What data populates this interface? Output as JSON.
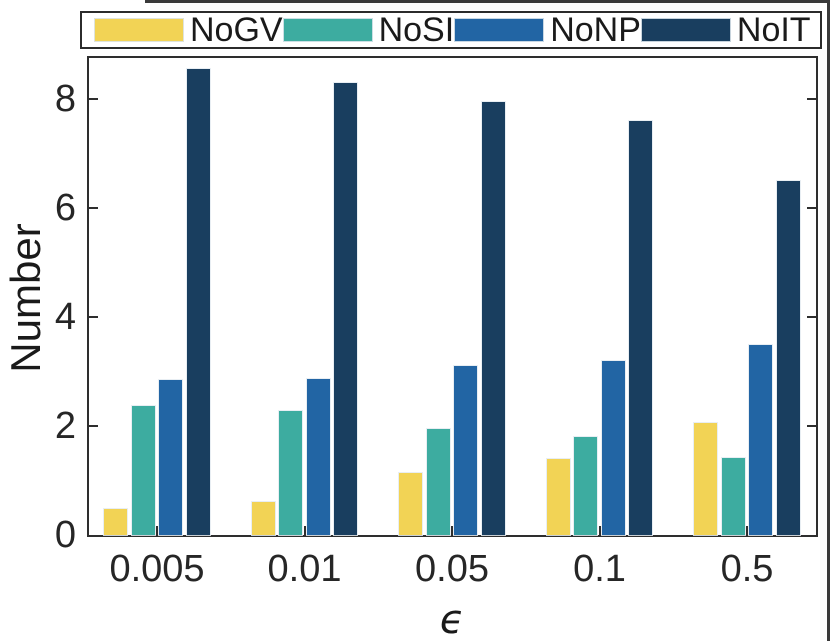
{
  "figure": {
    "background": "#ffffff",
    "frame_color": "#3a3a3a",
    "axis_color": "#2e2e2e",
    "text_color": "#262626"
  },
  "legend": {
    "position": "top",
    "items": [
      {
        "label": "NoGV",
        "color": "#F2D355"
      },
      {
        "label": "NoSI",
        "color": "#3DACA0"
      },
      {
        "label": "NoNP",
        "color": "#2265A4"
      },
      {
        "label": "NoIT",
        "color": "#193E5F"
      }
    ]
  },
  "chart_data": {
    "type": "bar",
    "title": "",
    "xlabel": "ϵ",
    "ylabel": "Number",
    "categories": [
      "0.005",
      "0.01",
      "0.05",
      "0.1",
      "0.5"
    ],
    "series": [
      {
        "name": "NoGV",
        "color": "#F2D355",
        "values": [
          0.47,
          0.6,
          1.13,
          1.4,
          2.06
        ]
      },
      {
        "name": "NoSI",
        "color": "#3DACA0",
        "values": [
          2.37,
          2.28,
          1.95,
          1.8,
          1.42
        ]
      },
      {
        "name": "NoNP",
        "color": "#2265A4",
        "values": [
          2.84,
          2.87,
          3.1,
          3.19,
          3.48
        ]
      },
      {
        "name": "NoIT",
        "color": "#193E5F",
        "values": [
          8.55,
          8.3,
          7.95,
          7.6,
          6.5
        ]
      }
    ],
    "ylim": [
      0,
      8.75
    ],
    "yticks": [
      0,
      2,
      4,
      6,
      8
    ],
    "grid": false,
    "legend_position": "top",
    "tick_direction": "in"
  }
}
